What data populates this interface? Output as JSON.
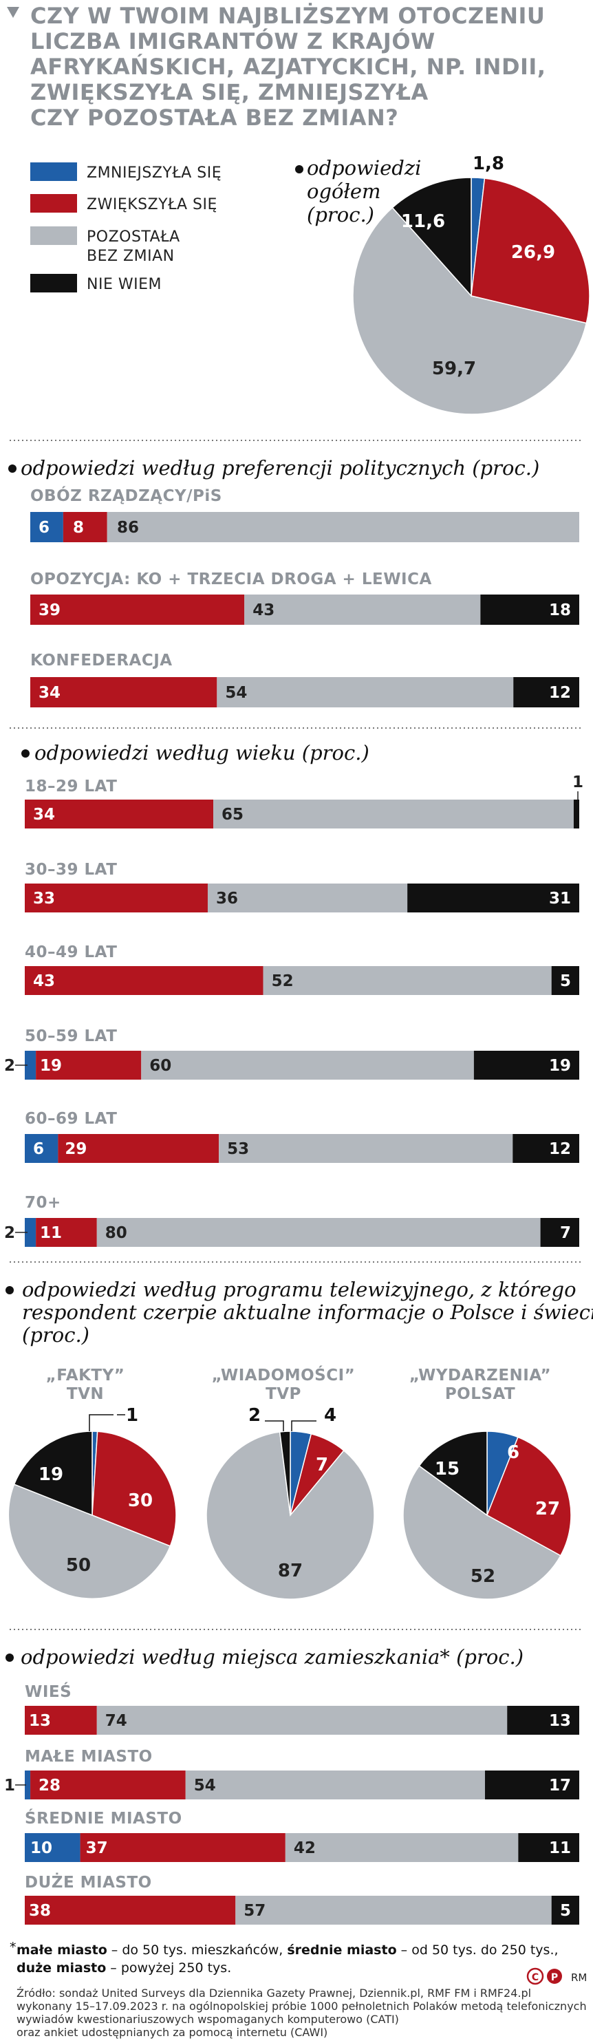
{
  "header": {
    "title_lines": [
      "CZY W TWOIM NAJBLIŻSZYM OTOCZENIU",
      "LICZBA IMIGRANTÓW Z KRAJÓW",
      "AFRYKAŃSKICH, AZJATYCKICH, NP. INDII,",
      "ZWIĘKSZYŁA SIĘ, ZMNIEJSZYŁA",
      "CZY POZOSTAŁA BEZ ZMIAN?"
    ]
  },
  "colors": {
    "zmniejszyla": "#1f5fa8",
    "zwiekszyla": "#b3151f",
    "bez_zmian": "#b3b8be",
    "nie_wiem": "#111111",
    "title": "#8a8f95"
  },
  "legend": [
    {
      "key": "zmniejszyla",
      "lines": [
        "ZMNIEJSZYŁA SIĘ"
      ]
    },
    {
      "key": "zwiekszyla",
      "lines": [
        "ZWIĘKSZYŁA SIĘ"
      ]
    },
    {
      "key": "bez_zmian",
      "lines": [
        "POZOSTAŁA",
        "BEZ ZMIAN"
      ]
    },
    {
      "key": "nie_wiem",
      "lines": [
        "NIE WIEM"
      ]
    }
  ],
  "sections": {
    "overall": [
      "odpowiedzi",
      "ogółem",
      "(proc.)"
    ],
    "political": "odpowiedzi według preferencji politycznych (proc.)",
    "age": "odpowiedzi według wieku (proc.)",
    "tv": [
      "odpowiedzi według programu telewizyjnego, z którego",
      "respondent czerpie aktualne informacje o Polsce i świecie",
      "(proc.)"
    ],
    "residence": "odpowiedzi według miejsca zamieszkania* (proc.)"
  },
  "chart_data": [
    {
      "type": "pie",
      "title": "odpowiedzi ogółem (proc.)",
      "categories": [
        "zmniejszyła się",
        "zwiększyła się",
        "pozostała bez zmian",
        "nie wiem"
      ],
      "values": [
        1.8,
        26.9,
        59.7,
        11.6
      ],
      "labels": [
        "1,8",
        "26,9",
        "59,7",
        "11,6"
      ]
    },
    {
      "type": "bar",
      "stacked": true,
      "title": "odpowiedzi według preferencji politycznych (proc.)",
      "categories": [
        "OBÓZ RZĄDZĄCY/PiS",
        "OPOZYCJA: KO + TRZECIA DROGA + LEWICA",
        "KONFEDERACJA"
      ],
      "series": [
        {
          "name": "zmniejszyła się",
          "values": [
            6,
            0,
            0
          ]
        },
        {
          "name": "zwiększyła się",
          "values": [
            8,
            39,
            34
          ]
        },
        {
          "name": "pozostała bez zmian",
          "values": [
            86,
            43,
            54
          ]
        },
        {
          "name": "nie wiem",
          "values": [
            0,
            18,
            12
          ]
        }
      ]
    },
    {
      "type": "bar",
      "stacked": true,
      "title": "odpowiedzi według wieku (proc.)",
      "categories": [
        "18–29 LAT",
        "30–39 LAT",
        "40–49 LAT",
        "50–59 LAT",
        "60–69 LAT",
        "70+"
      ],
      "series": [
        {
          "name": "zmniejszyła się",
          "values": [
            0,
            0,
            0,
            2,
            6,
            2
          ]
        },
        {
          "name": "zwiększyła się",
          "values": [
            34,
            33,
            43,
            19,
            29,
            11
          ]
        },
        {
          "name": "pozostała bez zmian",
          "values": [
            65,
            36,
            52,
            60,
            53,
            80
          ]
        },
        {
          "name": "nie wiem",
          "values": [
            1,
            31,
            5,
            19,
            12,
            7
          ]
        }
      ]
    },
    {
      "type": "pie",
      "title": "odpowiedzi według programu telewizyjnego (proc.)",
      "charts": [
        {
          "name": [
            "„FAKTY”",
            "TVN"
          ],
          "values": [
            1,
            30,
            50,
            19
          ]
        },
        {
          "name": [
            "„WIADOMOŚCI”",
            "TVP"
          ],
          "values": [
            4,
            7,
            87,
            2
          ]
        },
        {
          "name": [
            "„WYDARZENIA”",
            "POLSAT"
          ],
          "values": [
            6,
            27,
            52,
            15
          ]
        }
      ]
    },
    {
      "type": "bar",
      "stacked": true,
      "title": "odpowiedzi według miejsca zamieszkania* (proc.)",
      "categories": [
        "WIEŚ",
        "MAŁE MIASTO",
        "ŚREDNIE MIASTO",
        "DUŻE MIASTO"
      ],
      "series": [
        {
          "name": "zmniejszyła się",
          "values": [
            0,
            1,
            10,
            0
          ]
        },
        {
          "name": "zwiększyła się",
          "values": [
            13,
            28,
            37,
            38
          ]
        },
        {
          "name": "pozostała bez zmian",
          "values": [
            74,
            54,
            42,
            57
          ]
        },
        {
          "name": "nie wiem",
          "values": [
            13,
            17,
            11,
            5
          ]
        }
      ]
    }
  ],
  "footnote": {
    "star": "*",
    "parts": [
      {
        "text": "małe miasto",
        "bold": true
      },
      {
        "text": " – do 50 tys. mieszkańców, ",
        "bold": false
      },
      {
        "text": "średnie miasto",
        "bold": true
      },
      {
        "text": " – od 50 tys. do 250 tys.,",
        "bold": false
      }
    ],
    "parts2": [
      {
        "text": "duże miasto",
        "bold": true
      },
      {
        "text": " – powyżej 250 tys.",
        "bold": false
      }
    ]
  },
  "source_lines": [
    "Źródło: sondaż United Surveys dla Dziennika Gazety Prawnej, Dziennik.pl, RMF FM i RMF24.pl",
    "wykonany 15–17.09.2023 r. na ogólnopolskiej próbie 1000 pełnoletnich Polaków metodą telefonicznych",
    "wywiadów kwestionariuszowych wspomaganych komputerowo (CATI)",
    "oraz ankiet udostępnianych za pomocą internetu (CAWI)"
  ],
  "credits": {
    "logo_c": "C",
    "logo_p": "P",
    "author": "RM"
  }
}
